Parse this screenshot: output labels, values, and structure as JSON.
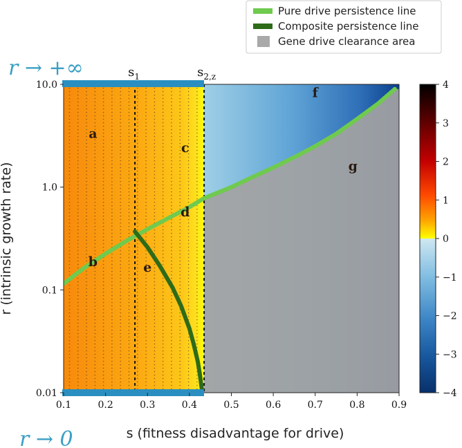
{
  "chart_data": {
    "type": "heatmap",
    "xlabel": "s (fitness disadvantage for drive)",
    "ylabel": "r (intrinsic growth rate)",
    "xlim": [
      0.1,
      0.9
    ],
    "ylim": [
      0.01,
      10.0
    ],
    "yscale": "log",
    "xticks": [
      "0.1",
      "0.2",
      "0.3",
      "0.4",
      "0.5",
      "0.6",
      "0.7",
      "0.8",
      "0.9"
    ],
    "yticks": [
      {
        "value": 0.01,
        "label": "0.01"
      },
      {
        "value": 0.1,
        "label": "0.1"
      },
      {
        "value": 1.0,
        "label": "1.0"
      },
      {
        "value": 10.0,
        "label": "10.0"
      }
    ],
    "colorbar": {
      "min": -4,
      "max": 4,
      "ticks": [
        "4",
        "3",
        "2",
        "1",
        "0",
        "−1",
        "−2",
        "−3",
        "−4"
      ]
    },
    "legend": {
      "placement": "top-right",
      "entries": [
        {
          "label": "Pure drive persistence line",
          "color": "#6fca4e"
        },
        {
          "label": "Composite persistence line",
          "color": "#2e6b18"
        },
        {
          "label": "Gene drive clearance area",
          "color": "#a9a9a9"
        }
      ]
    },
    "vertical_lines": [
      {
        "label": "s",
        "sub": "1",
        "x": 0.27
      },
      {
        "label": "s",
        "sub": "2,z",
        "x": 0.435
      }
    ],
    "limit_labels": {
      "top": "r → +∞",
      "bottom": "r → 0"
    },
    "regions": [
      {
        "label": "a",
        "x": 0.17,
        "y": 3.0
      },
      {
        "label": "b",
        "x": 0.17,
        "y": 0.17
      },
      {
        "label": "c",
        "x": 0.39,
        "y": 2.2
      },
      {
        "label": "d",
        "x": 0.39,
        "y": 0.52
      },
      {
        "label": "e",
        "x": 0.3,
        "y": 0.15
      },
      {
        "label": "f",
        "x": 0.7,
        "y": 7.5
      },
      {
        "label": "g",
        "x": 0.79,
        "y": 1.45
      }
    ],
    "series": [
      {
        "name": "Pure drive persistence line",
        "color": "#6fca4e",
        "x": [
          0.1,
          0.15,
          0.2,
          0.25,
          0.3,
          0.35,
          0.4,
          0.435,
          0.5,
          0.55,
          0.6,
          0.65,
          0.7,
          0.75,
          0.8,
          0.85,
          0.89
        ],
        "y": [
          0.115,
          0.165,
          0.225,
          0.3,
          0.39,
          0.5,
          0.64,
          0.78,
          1.0,
          1.25,
          1.55,
          1.95,
          2.5,
          3.3,
          4.6,
          6.5,
          9.0
        ]
      },
      {
        "name": "Composite persistence line",
        "color": "#2e6b18",
        "x": [
          0.27,
          0.3,
          0.33,
          0.36,
          0.38,
          0.4,
          0.41,
          0.42,
          0.425,
          0.43
        ],
        "y": [
          0.37,
          0.26,
          0.17,
          0.105,
          0.07,
          0.042,
          0.03,
          0.02,
          0.015,
          0.0105
        ]
      }
    ]
  }
}
